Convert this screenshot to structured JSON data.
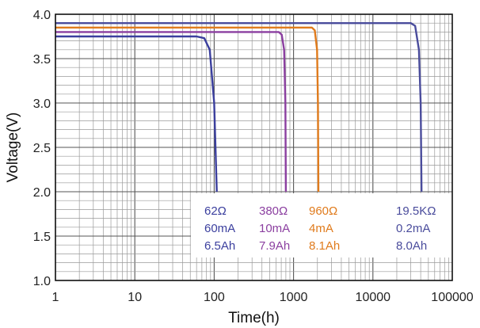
{
  "chart_data": {
    "type": "line",
    "xlabel": "Time(h)",
    "ylabel": "Voltage(V)",
    "x_scale": "log",
    "xlim": [
      1,
      100000
    ],
    "ylim": [
      1.0,
      4.0
    ],
    "grid": true,
    "x_ticks": [
      "1",
      "10",
      "100",
      "1000",
      "10000",
      "100000"
    ],
    "y_ticks": [
      "1.0",
      "1.5",
      "2.0",
      "2.5",
      "3.0",
      "3.5",
      "4.0"
    ],
    "series": [
      {
        "annotation": [
          "62Ω",
          "60mA",
          "6.5Ah"
        ],
        "color": "#3b3f9e",
        "points": [
          [
            1,
            3.75
          ],
          [
            60,
            3.75
          ],
          [
            75,
            3.73
          ],
          [
            88,
            3.6
          ],
          [
            100,
            3.0
          ],
          [
            108,
            2.0
          ]
        ]
      },
      {
        "annotation": [
          "380Ω",
          "10mA",
          "7.9Ah"
        ],
        "color": "#8b3fa0",
        "points": [
          [
            1,
            3.8
          ],
          [
            650,
            3.8
          ],
          [
            710,
            3.77
          ],
          [
            760,
            3.6
          ],
          [
            790,
            3.0
          ],
          [
            800,
            2.0
          ]
        ]
      },
      {
        "annotation": [
          "960Ω",
          "4mA",
          "8.1Ah"
        ],
        "color": "#e07b1c",
        "points": [
          [
            1,
            3.85
          ],
          [
            1700,
            3.85
          ],
          [
            1850,
            3.82
          ],
          [
            1980,
            3.6
          ],
          [
            2030,
            3.0
          ],
          [
            2060,
            2.0
          ]
        ]
      },
      {
        "annotation": [
          "19.5KΩ",
          "0.2mA",
          "8.0Ah"
        ],
        "color": "#4a4c9c",
        "points": [
          [
            1,
            3.9
          ],
          [
            30000,
            3.9
          ],
          [
            34000,
            3.87
          ],
          [
            38000,
            3.6
          ],
          [
            40000,
            3.0
          ],
          [
            41000,
            2.0
          ]
        ]
      }
    ]
  }
}
